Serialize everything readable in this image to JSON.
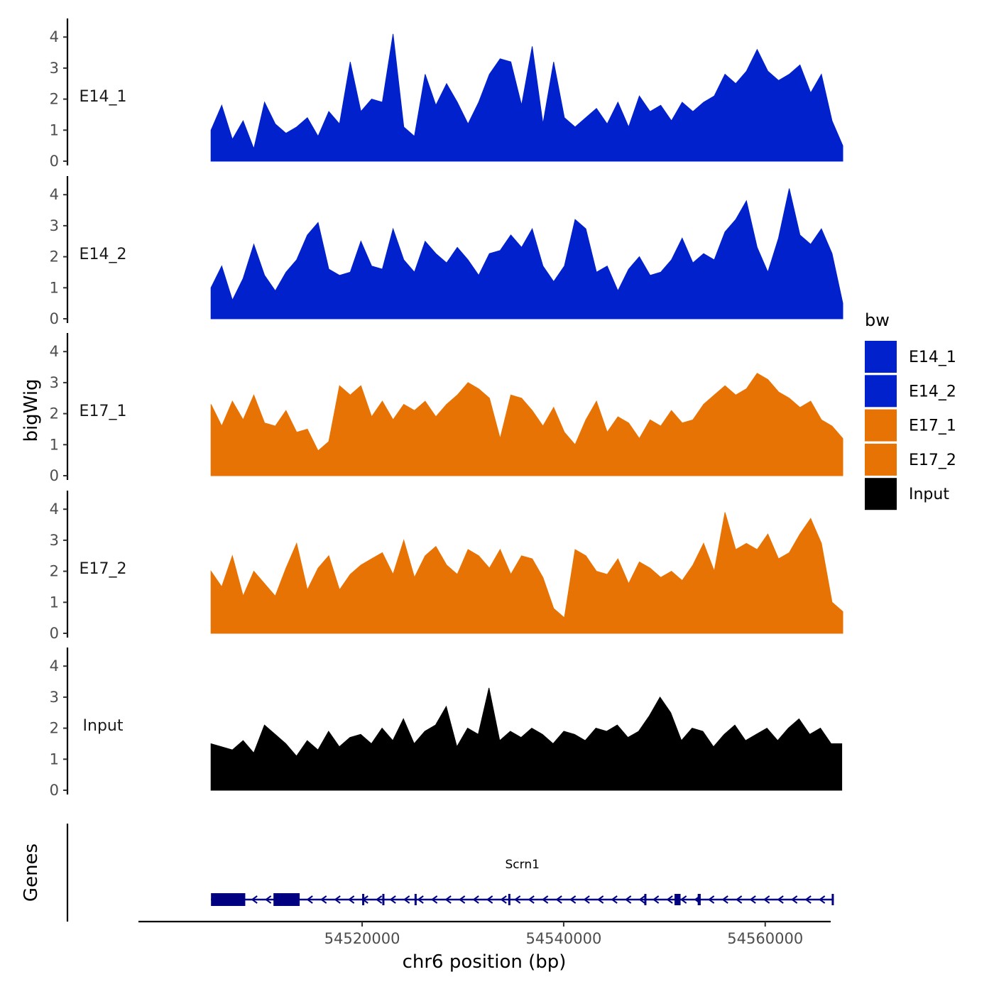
{
  "chart_data": {
    "type": "area",
    "title": "",
    "ylabel": "bigWig",
    "genes_label": "Genes",
    "xlabel": "chr6 position (bp)",
    "xlim": [
      54497800,
      54566500
    ],
    "x_ticks": [
      54520000,
      54540000,
      54560000
    ],
    "x_tick_labels": [
      "54520000",
      "54540000",
      "54560000"
    ],
    "ylim": [
      0,
      4.5
    ],
    "y_ticks": [
      0,
      1,
      2,
      3,
      4
    ],
    "y_tick_labels": [
      "0",
      "1",
      "2",
      "3",
      "4"
    ],
    "legend": {
      "title": "bw",
      "position": "right",
      "entries": [
        {
          "label": "E14_1",
          "color": "#0021CC"
        },
        {
          "label": "E14_2",
          "color": "#0021CC"
        },
        {
          "label": "E17_1",
          "color": "#E87305"
        },
        {
          "label": "E17_2",
          "color": "#E87305"
        },
        {
          "label": "Input",
          "color": "#000000"
        }
      ]
    },
    "tracks": [
      {
        "name": "E14_1",
        "color": "#0021CC",
        "x_start": 54505000,
        "x_end": 54567700,
        "n_bins": 60,
        "values": [
          1.0,
          1.8,
          0.7,
          1.3,
          0.4,
          1.9,
          1.2,
          0.9,
          1.1,
          1.4,
          0.8,
          1.6,
          1.2,
          3.2,
          1.6,
          2.0,
          1.9,
          4.1,
          1.1,
          0.8,
          2.8,
          1.8,
          2.5,
          1.9,
          1.2,
          1.9,
          2.8,
          3.3,
          3.2,
          1.8,
          3.7,
          1.2,
          3.2,
          1.4,
          1.1,
          1.4,
          1.7,
          1.2,
          1.9,
          1.1,
          2.1,
          1.6,
          1.8,
          1.3,
          1.9,
          1.6,
          1.9,
          2.1,
          2.8,
          2.5,
          2.9,
          3.6,
          2.9,
          2.6,
          2.8,
          3.1,
          2.2,
          2.8,
          1.3,
          0.5
        ]
      },
      {
        "name": "E14_2",
        "color": "#0021CC",
        "x_start": 54505000,
        "x_end": 54567700,
        "n_bins": 60,
        "values": [
          1.0,
          1.7,
          0.6,
          1.3,
          2.4,
          1.4,
          0.9,
          1.5,
          1.9,
          2.7,
          3.1,
          1.6,
          1.4,
          1.5,
          2.5,
          1.7,
          1.6,
          2.9,
          1.9,
          1.5,
          2.5,
          2.1,
          1.8,
          2.3,
          1.9,
          1.4,
          2.1,
          2.2,
          2.7,
          2.3,
          2.9,
          1.7,
          1.2,
          1.7,
          3.2,
          2.9,
          1.5,
          1.7,
          0.9,
          1.6,
          2.0,
          1.4,
          1.5,
          1.9,
          2.6,
          1.8,
          2.1,
          1.9,
          2.8,
          3.2,
          3.8,
          2.3,
          1.5,
          2.6,
          4.2,
          2.7,
          2.4,
          2.9,
          2.1,
          0.5
        ]
      },
      {
        "name": "E17_1",
        "color": "#E87305",
        "x_start": 54505000,
        "x_end": 54567700,
        "n_bins": 60,
        "values": [
          2.3,
          1.6,
          2.4,
          1.8,
          2.6,
          1.7,
          1.6,
          2.1,
          1.4,
          1.5,
          0.8,
          1.1,
          2.9,
          2.6,
          2.9,
          1.9,
          2.4,
          1.8,
          2.3,
          2.1,
          2.4,
          1.9,
          2.3,
          2.6,
          3.0,
          2.8,
          2.5,
          1.2,
          2.6,
          2.5,
          2.1,
          1.6,
          2.2,
          1.4,
          1.0,
          1.8,
          2.4,
          1.4,
          1.9,
          1.7,
          1.2,
          1.8,
          1.6,
          2.1,
          1.7,
          1.8,
          2.3,
          2.6,
          2.9,
          2.6,
          2.8,
          3.3,
          3.1,
          2.7,
          2.5,
          2.2,
          2.4,
          1.8,
          1.6,
          1.2
        ]
      },
      {
        "name": "E17_2",
        "color": "#E87305",
        "x_start": 54505000,
        "x_end": 54567700,
        "n_bins": 60,
        "values": [
          2.0,
          1.5,
          2.5,
          1.2,
          2.0,
          1.6,
          1.2,
          2.1,
          2.9,
          1.4,
          2.1,
          2.5,
          1.4,
          1.9,
          2.2,
          2.4,
          2.6,
          1.9,
          3.0,
          1.8,
          2.5,
          2.8,
          2.2,
          1.9,
          2.7,
          2.5,
          2.1,
          2.7,
          1.9,
          2.5,
          2.4,
          1.8,
          0.8,
          0.5,
          2.7,
          2.5,
          2.0,
          1.9,
          2.4,
          1.6,
          2.3,
          2.1,
          1.8,
          2.0,
          1.7,
          2.2,
          2.9,
          2.0,
          3.9,
          2.7,
          2.9,
          2.7,
          3.2,
          2.4,
          2.6,
          3.2,
          3.7,
          2.9,
          1.0,
          0.7
        ]
      },
      {
        "name": "Input",
        "color": "#000000",
        "x_start": 54505000,
        "x_end": 54567600,
        "n_bins": 60,
        "values": [
          1.5,
          1.4,
          1.3,
          1.6,
          1.2,
          2.1,
          1.8,
          1.5,
          1.1,
          1.6,
          1.3,
          1.9,
          1.4,
          1.7,
          1.8,
          1.5,
          2.0,
          1.6,
          2.3,
          1.5,
          1.9,
          2.1,
          2.7,
          1.4,
          2.0,
          1.8,
          3.3,
          1.6,
          1.9,
          1.7,
          2.0,
          1.8,
          1.5,
          1.9,
          1.8,
          1.6,
          2.0,
          1.9,
          2.1,
          1.7,
          1.9,
          2.4,
          3.0,
          2.5,
          1.6,
          2.0,
          1.9,
          1.4,
          1.8,
          2.1,
          1.6,
          1.8,
          2.0,
          1.6,
          2.0,
          2.3,
          1.8,
          2.0,
          1.5,
          1.5
        ]
      }
    ],
    "gene": {
      "name": "Scrn1",
      "strand": "-",
      "color": "#000080",
      "start": 54505000,
      "end": 54566800,
      "exons": [
        [
          54505000,
          54508400
        ],
        [
          54511200,
          54513800
        ],
        [
          54520000,
          54520200
        ],
        [
          54522000,
          54522200
        ],
        [
          54525200,
          54525400
        ],
        [
          54534500,
          54534700
        ],
        [
          54548000,
          54548200
        ],
        [
          54551000,
          54551600
        ],
        [
          54553300,
          54553600
        ],
        [
          54566600,
          54566800
        ]
      ]
    }
  }
}
